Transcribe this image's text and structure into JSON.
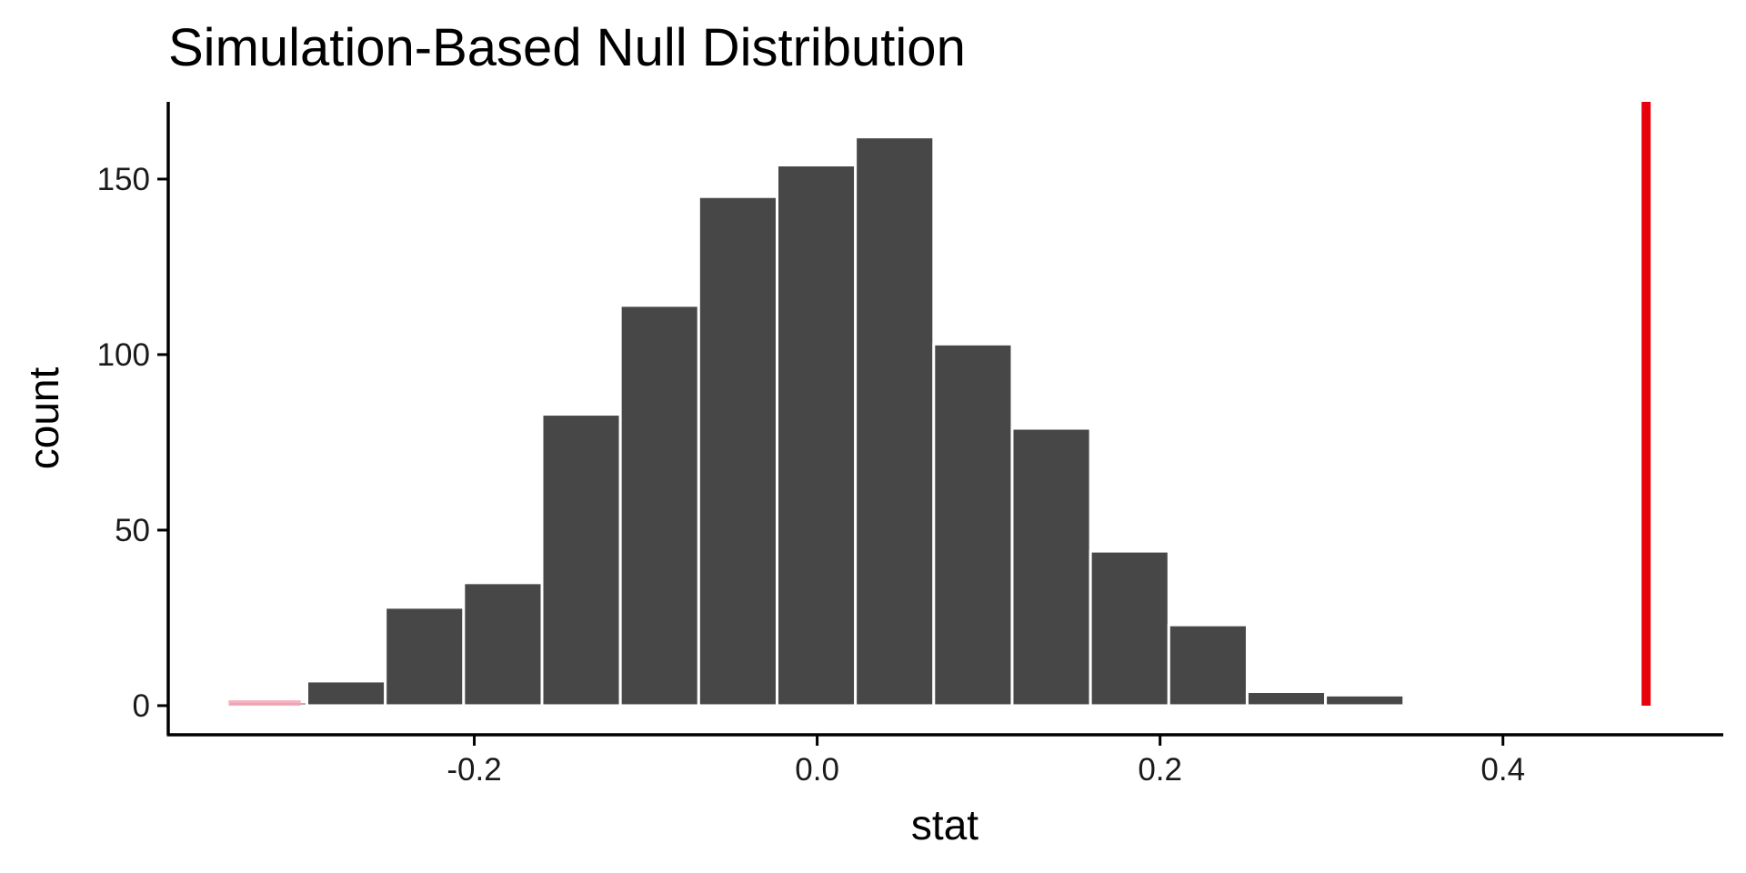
{
  "chart_data": {
    "type": "bar",
    "title": "Simulation-Based Null Distribution",
    "xlabel": "stat",
    "ylabel": "count",
    "xlim": [
      -0.3785,
      0.5285
    ],
    "ylim": [
      -8.3,
      172
    ],
    "x_ticks": [
      -0.2,
      0.0,
      0.2,
      0.4
    ],
    "x_tick_labels": [
      "-0.2",
      "0.0",
      "0.2",
      "0.4"
    ],
    "y_ticks": [
      0,
      50,
      100,
      150
    ],
    "y_tick_labels": [
      "0",
      "50",
      "100",
      "150"
    ],
    "bin_width": 0.0457,
    "bins": [
      {
        "x0": -0.3433,
        "x1": -0.2976,
        "count": 1
      },
      {
        "x0": -0.2976,
        "x1": -0.2519,
        "count": 7
      },
      {
        "x0": -0.2519,
        "x1": -0.2062,
        "count": 28
      },
      {
        "x0": -0.2062,
        "x1": -0.1605,
        "count": 35
      },
      {
        "x0": -0.1605,
        "x1": -0.1148,
        "count": 83
      },
      {
        "x0": -0.1148,
        "x1": -0.0691,
        "count": 114
      },
      {
        "x0": -0.0691,
        "x1": -0.0234,
        "count": 145
      },
      {
        "x0": -0.0234,
        "x1": 0.0223,
        "count": 154
      },
      {
        "x0": 0.0223,
        "x1": 0.068,
        "count": 162
      },
      {
        "x0": 0.068,
        "x1": 0.1137,
        "count": 103
      },
      {
        "x0": 0.1137,
        "x1": 0.1594,
        "count": 79
      },
      {
        "x0": 0.1594,
        "x1": 0.2051,
        "count": 44
      },
      {
        "x0": 0.2051,
        "x1": 0.2508,
        "count": 23
      },
      {
        "x0": 0.2508,
        "x1": 0.2965,
        "count": 4
      },
      {
        "x0": 0.2965,
        "x1": 0.3422,
        "count": 3
      }
    ],
    "observed_stat": 0.4835,
    "colors": {
      "bar_fill": "#474747",
      "bar_outline": "#ffffff",
      "observed_line": "#e8000b",
      "shade": "#f4a3b5",
      "axis": "#000000"
    },
    "grid": false,
    "legend": "none"
  }
}
